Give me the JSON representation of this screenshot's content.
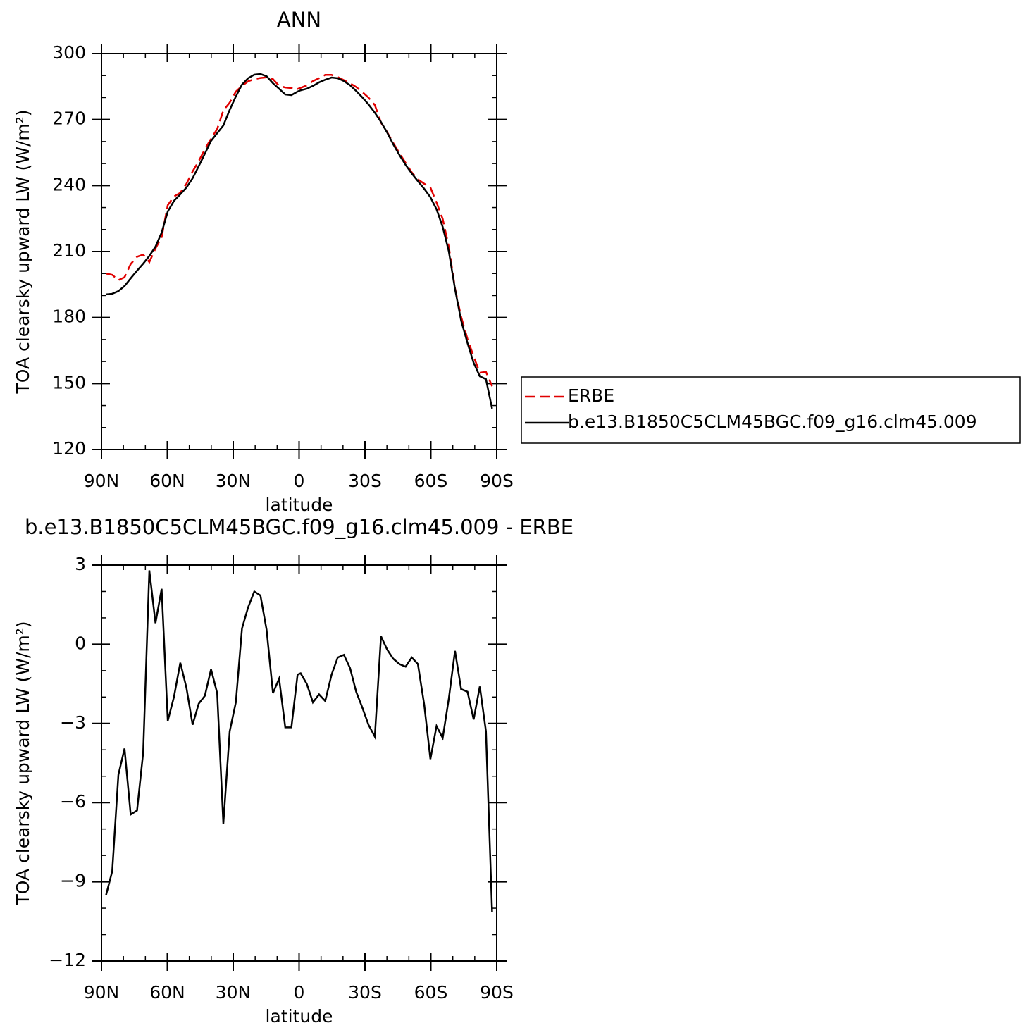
{
  "chart_data": [
    {
      "type": "line",
      "title": "ANN",
      "xlabel": "latitude",
      "ylabel": "TOA clearsky upward LW (W/m²)",
      "xlim": [
        90,
        -90
      ],
      "xticks": [
        {
          "value": 90,
          "label": "90N"
        },
        {
          "value": 60,
          "label": "60N"
        },
        {
          "value": 30,
          "label": "30N"
        },
        0,
        {
          "value": -30,
          "label": "30S"
        },
        {
          "value": -60,
          "label": "60S"
        },
        {
          "value": -90,
          "label": "90S"
        }
      ],
      "ylim": [
        120,
        300
      ],
      "yticks": [
        120,
        150,
        180,
        210,
        240,
        270,
        300
      ],
      "legend": "right",
      "x": [
        87.9,
        85.1,
        82.3,
        79.5,
        76.7,
        73.8,
        71.0,
        68.2,
        65.4,
        62.6,
        59.8,
        57.0,
        54.1,
        51.3,
        48.5,
        45.7,
        42.9,
        40.1,
        37.3,
        34.5,
        31.6,
        28.8,
        26.0,
        23.2,
        20.4,
        17.6,
        14.8,
        11.9,
        9.1,
        6.3,
        3.5,
        0.7,
        -0.7,
        -3.5,
        -6.3,
        -9.1,
        -11.9,
        -14.8,
        -17.6,
        -20.4,
        -23.2,
        -26.0,
        -28.8,
        -31.6,
        -34.5,
        -37.3,
        -40.1,
        -42.9,
        -45.7,
        -48.5,
        -51.3,
        -54.1,
        -57.0,
        -59.8,
        -62.6,
        -65.4,
        -68.2,
        -71.0,
        -73.8,
        -76.7,
        -79.5,
        -82.3,
        -85.1,
        -87.9
      ],
      "series": [
        {
          "name": "ERBE",
          "color": "#e00000",
          "style": "dashed",
          "values": [
            200.0,
            199.4,
            197.0,
            198.3,
            204.3,
            207.6,
            208.6,
            205.2,
            211.4,
            216.5,
            231.1,
            235.0,
            236.7,
            240.8,
            246.4,
            251.1,
            256.5,
            261.3,
            265.7,
            274.1,
            277.7,
            282.7,
            285.3,
            287.4,
            288.4,
            288.9,
            289.2,
            288.4,
            285.3,
            284.6,
            284.3,
            283.9,
            284.4,
            285.5,
            287.5,
            288.8,
            290.3,
            290.3,
            289.3,
            287.9,
            286.5,
            284.8,
            282.5,
            280.0,
            276.6,
            268.6,
            264.3,
            259.3,
            254.7,
            250.3,
            246.0,
            242.8,
            240.8,
            239.1,
            232.3,
            224.8,
            212.1,
            193.3,
            180.3,
            170.2,
            162.3,
            154.9,
            155.3,
            148.8
          ]
        },
        {
          "name": "b.e13.B1850C5CLM45BGC.f09_g16.clm45.009",
          "color": "#000000",
          "style": "solid",
          "values": [
            190.5,
            190.8,
            192.0,
            194.3,
            197.8,
            201.3,
            204.5,
            208.0,
            212.2,
            218.6,
            228.2,
            233.0,
            236.0,
            239.1,
            243.3,
            248.8,
            254.5,
            260.3,
            263.8,
            267.3,
            274.4,
            280.5,
            285.9,
            288.8,
            290.4,
            290.7,
            289.7,
            286.5,
            284.0,
            281.4,
            281.1,
            282.7,
            283.3,
            284.0,
            285.3,
            286.9,
            288.1,
            289.1,
            288.8,
            287.5,
            285.6,
            283.0,
            280.1,
            276.9,
            273.1,
            268.9,
            264.1,
            258.7,
            253.9,
            249.4,
            245.5,
            242.0,
            238.5,
            234.7,
            229.2,
            221.2,
            210.0,
            193.0,
            178.6,
            168.4,
            159.4,
            153.3,
            152.0,
            138.6
          ]
        }
      ]
    },
    {
      "type": "line",
      "title": "b.e13.B1850C5CLM45BGC.f09_g16.clm45.009 - ERBE",
      "xlabel": "latitude",
      "ylabel": "TOA clearsky upward LW (W/m²)",
      "xlim": [
        90,
        -90
      ],
      "xticks": [
        {
          "value": 90,
          "label": "90N"
        },
        {
          "value": 60,
          "label": "60N"
        },
        {
          "value": 30,
          "label": "30N"
        },
        0,
        {
          "value": -30,
          "label": "30S"
        },
        {
          "value": -60,
          "label": "60S"
        },
        {
          "value": -90,
          "label": "90S"
        }
      ],
      "ylim": [
        -12,
        3
      ],
      "yticks": [
        {
          "value": -12,
          "label": "−12"
        },
        {
          "value": -9,
          "label": "−9"
        },
        {
          "value": -6,
          "label": "−6"
        },
        {
          "value": -3,
          "label": "−3"
        },
        0,
        3
      ],
      "x": [
        87.9,
        85.1,
        82.3,
        79.5,
        76.7,
        73.8,
        71.0,
        68.2,
        65.4,
        62.6,
        59.8,
        57.0,
        54.1,
        51.3,
        48.5,
        45.7,
        42.9,
        40.1,
        37.3,
        34.5,
        31.6,
        28.8,
        26.0,
        23.2,
        20.4,
        17.6,
        14.8,
        11.9,
        9.1,
        6.3,
        3.5,
        0.7,
        -0.7,
        -3.5,
        -6.3,
        -9.1,
        -11.9,
        -14.8,
        -17.6,
        -20.4,
        -23.2,
        -26.0,
        -28.8,
        -31.6,
        -34.5,
        -37.3,
        -40.1,
        -42.9,
        -45.7,
        -48.5,
        -51.3,
        -54.1,
        -57.0,
        -59.8,
        -62.6,
        -65.4,
        -68.2,
        -71.0,
        -73.8,
        -76.7,
        -79.5,
        -82.3,
        -85.1,
        -87.9
      ],
      "color": "#000000",
      "values": [
        -9.5,
        -8.6,
        -4.95,
        -3.95,
        -6.45,
        -6.3,
        -4.1,
        2.8,
        0.8,
        2.1,
        -2.9,
        -2.0,
        -0.7,
        -1.65,
        -3.05,
        -2.25,
        -1.95,
        -0.95,
        -1.85,
        -6.8,
        -3.3,
        -2.2,
        0.6,
        1.4,
        2.0,
        1.85,
        0.55,
        -1.85,
        -1.3,
        -3.15,
        -3.15,
        -1.15,
        -1.1,
        -1.5,
        -2.2,
        -1.9,
        -2.15,
        -1.15,
        -0.5,
        -0.4,
        -0.9,
        -1.8,
        -2.4,
        -3.05,
        -3.5,
        0.3,
        -0.2,
        -0.55,
        -0.75,
        -0.85,
        -0.5,
        -0.75,
        -2.3,
        -4.35,
        -3.1,
        -3.55,
        -2.05,
        -0.25,
        -1.7,
        -1.8,
        -2.85,
        -1.6,
        -3.3,
        -10.15
      ]
    }
  ]
}
